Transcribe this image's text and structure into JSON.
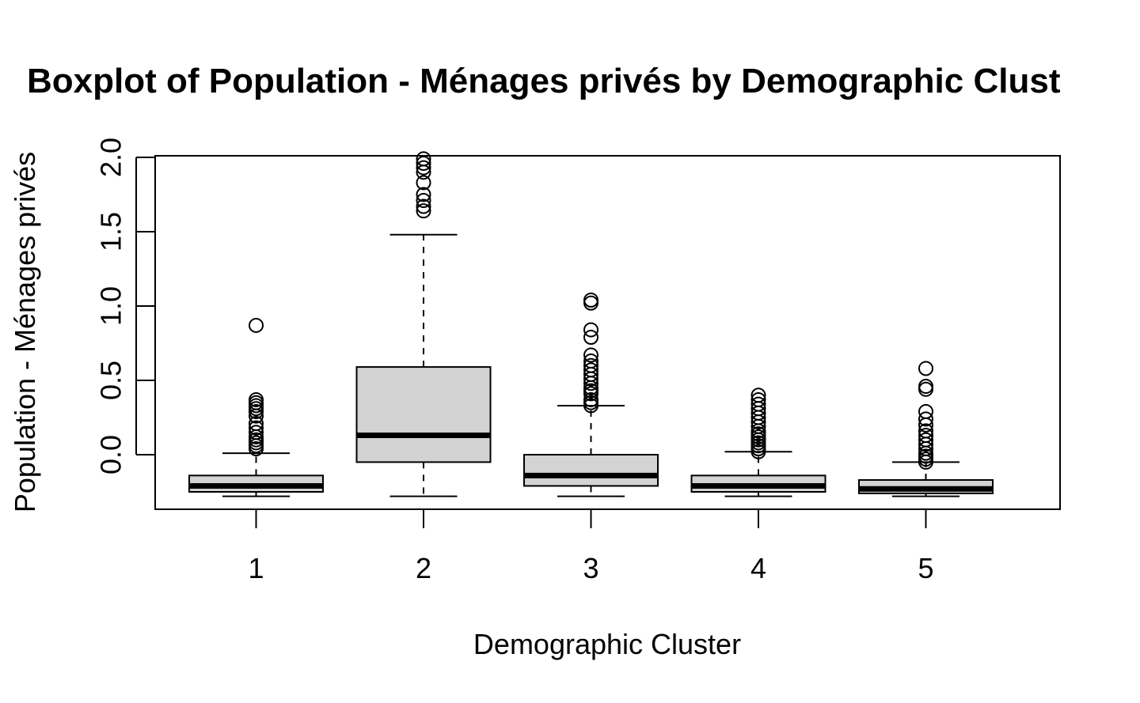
{
  "chart_data": {
    "type": "boxplot",
    "title": "Boxplot of Population - Ménages privés by Demographic Clust",
    "xlabel": "Demographic Cluster",
    "ylabel": "Population - Ménages privés",
    "ylim": [
      -0.37,
      2.02
    ],
    "yticks": [
      {
        "value": 0.0,
        "label": "0.0"
      },
      {
        "value": 0.5,
        "label": "0.5"
      },
      {
        "value": 1.0,
        "label": "1.0"
      },
      {
        "value": 1.5,
        "label": "1.5"
      },
      {
        "value": 2.0,
        "label": "2.0"
      }
    ],
    "categories": [
      "1",
      "2",
      "3",
      "4",
      "5"
    ],
    "grid": false,
    "legend": "none",
    "colors": {
      "box_fill": "#d3d3d3",
      "stroke": "#000000"
    },
    "boxes": [
      {
        "category": "1",
        "whisker_low": -0.28,
        "q1": -0.25,
        "median": -0.21,
        "q3": -0.14,
        "whisker_high": 0.01,
        "outliers": [
          0.04,
          0.06,
          0.08,
          0.1,
          0.12,
          0.15,
          0.18,
          0.21,
          0.26,
          0.29,
          0.31,
          0.33,
          0.35,
          0.37,
          0.87
        ]
      },
      {
        "category": "2",
        "whisker_low": -0.28,
        "q1": -0.05,
        "median": 0.13,
        "q3": 0.59,
        "whisker_high": 1.48,
        "outliers": [
          1.64,
          1.67,
          1.71,
          1.75,
          1.83,
          1.9,
          1.93,
          1.96,
          1.99
        ]
      },
      {
        "category": "3",
        "whisker_low": -0.28,
        "q1": -0.21,
        "median": -0.14,
        "q3": 0.0,
        "whisker_high": 0.33,
        "outliers": [
          0.33,
          0.35,
          0.37,
          0.41,
          0.43,
          0.45,
          0.48,
          0.51,
          0.54,
          0.57,
          0.6,
          0.63,
          0.67,
          0.79,
          0.84,
          1.02,
          1.04
        ]
      },
      {
        "category": "4",
        "whisker_low": -0.28,
        "q1": -0.25,
        "median": -0.21,
        "q3": -0.14,
        "whisker_high": 0.02,
        "outliers": [
          0.02,
          0.04,
          0.06,
          0.08,
          0.1,
          0.12,
          0.14,
          0.16,
          0.19,
          0.22,
          0.25,
          0.28,
          0.31,
          0.34,
          0.37,
          0.4
        ]
      },
      {
        "category": "5",
        "whisker_low": -0.28,
        "q1": -0.26,
        "median": -0.23,
        "q3": -0.17,
        "whisker_high": -0.05,
        "outliers": [
          -0.05,
          -0.03,
          -0.01,
          0.01,
          0.04,
          0.07,
          0.1,
          0.13,
          0.16,
          0.2,
          0.24,
          0.29,
          0.44,
          0.46,
          0.58
        ]
      }
    ]
  }
}
